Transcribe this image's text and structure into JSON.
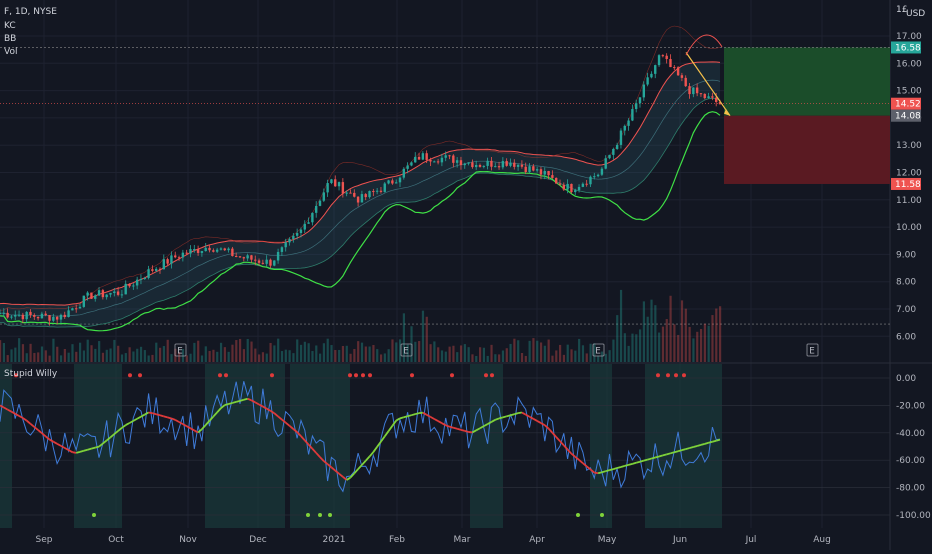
{
  "header": {
    "symbol": "F, 1D, NYSE",
    "indicators": [
      "KC",
      "BB",
      "Vol"
    ],
    "currency": "USD",
    "top_right_label": "1£"
  },
  "colors": {
    "background": "#131722",
    "grid": "#1e2230",
    "up": "#26a69a",
    "down": "#ef5350",
    "kc": "#ef5350",
    "bb": "#3fe046",
    "target_zone": "#1b4d2a",
    "stop_zone": "#5a1a22",
    "wave_line": "#3f7bd9",
    "signal_green": "#7fd33a",
    "signal_red": "#e03a3a",
    "zone_shade": "#1a3b3b"
  },
  "chart_data": [
    {
      "type": "candlestick",
      "title": "F, 1D, NYSE",
      "ylim": [
        5.5,
        17.4
      ],
      "yticks": [
        "17.00",
        "16.00",
        "15.00",
        "14.00",
        "13.00",
        "12.00",
        "11.00",
        "10.00",
        "9.00",
        "8.00",
        "7.00",
        "6.00"
      ],
      "xticks": [
        "Sep",
        "Oct",
        "Nov",
        "Dec",
        "2021",
        "Feb",
        "Mar",
        "Apr",
        "May",
        "Jun",
        "Jul",
        "Aug"
      ],
      "price_tags": [
        {
          "label": "16.58",
          "color": "#26a69a"
        },
        {
          "label": "14.52",
          "color": "#ef5350"
        },
        {
          "label": "14.08",
          "color": "#5d606b"
        },
        {
          "label": "11.58",
          "color": "#ef5350"
        }
      ],
      "earnings_markers": [
        "E",
        "E",
        "E",
        "E"
      ],
      "close_path": [
        {
          "x": "Aug-28",
          "y": 6.85
        },
        {
          "x": "Sep-15",
          "y": 6.75
        },
        {
          "x": "Oct-01",
          "y": 6.7
        },
        {
          "x": "Oct-12",
          "y": 7.5
        },
        {
          "x": "Oct-27",
          "y": 7.6
        },
        {
          "x": "Nov-10",
          "y": 8.4
        },
        {
          "x": "Nov-25",
          "y": 9.0
        },
        {
          "x": "Dec-08",
          "y": 9.3
        },
        {
          "x": "Dec-22",
          "y": 8.9
        },
        {
          "x": "Jan-04",
          "y": 8.7
        },
        {
          "x": "Jan-12",
          "y": 9.8
        },
        {
          "x": "Jan-19",
          "y": 11.7
        },
        {
          "x": "Jan-27",
          "y": 11.0
        },
        {
          "x": "Feb-10",
          "y": 11.6
        },
        {
          "x": "Feb-25",
          "y": 12.6
        },
        {
          "x": "Mar-10",
          "y": 12.5
        },
        {
          "x": "Mar-24",
          "y": 12.3
        },
        {
          "x": "Apr-08",
          "y": 12.4
        },
        {
          "x": "Apr-22",
          "y": 12.0
        },
        {
          "x": "May-06",
          "y": 11.4
        },
        {
          "x": "May-18",
          "y": 12.0
        },
        {
          "x": "May-27",
          "y": 14.0
        },
        {
          "x": "Jun-02",
          "y": 16.3
        },
        {
          "x": "Jun-10",
          "y": 15.0
        },
        {
          "x": "Jun-16",
          "y": 14.52
        }
      ]
    },
    {
      "type": "line",
      "title": "Stupid Willy",
      "ylim": [
        -104,
        4
      ],
      "yticks": [
        "0.00",
        "-20.00",
        "-40.00",
        "-60.00",
        "-80.00",
        "-100.00"
      ],
      "series": [
        {
          "values": [
            -20,
            -30,
            -45,
            -55,
            -50,
            -35,
            -25,
            -30,
            -40,
            -20,
            -15,
            -25,
            -40,
            -60,
            -75,
            -55,
            -30,
            -25,
            -35,
            -40,
            -30,
            -25,
            -35,
            -55,
            -70,
            -65,
            -60,
            -55,
            -50,
            -45
          ]
        }
      ]
    }
  ]
}
